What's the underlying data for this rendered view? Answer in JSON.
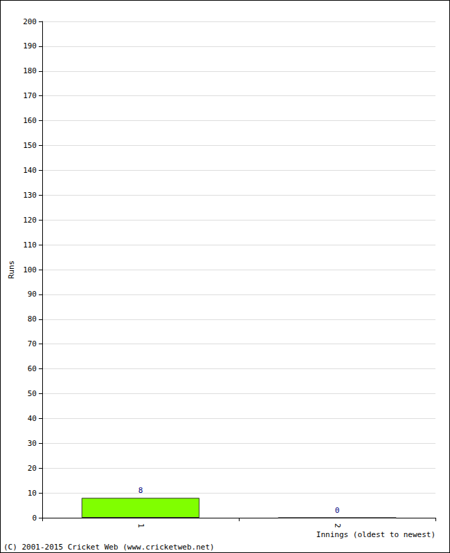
{
  "chart_data": {
    "type": "bar",
    "categories": [
      "1",
      "2"
    ],
    "values": [
      8,
      0
    ],
    "color": "#80ff00",
    "ylim": [
      0,
      200
    ],
    "yticks": [
      0,
      10,
      20,
      30,
      40,
      50,
      60,
      70,
      80,
      90,
      100,
      110,
      120,
      130,
      140,
      150,
      160,
      170,
      180,
      190,
      200
    ],
    "grid": true,
    "data_labels": true,
    "ylabel": "Runs",
    "xlabel": "Innings (oldest to newest)",
    "annotations": [
      "(C) 2001-2015 Cricket Web (www.cricketweb.net)"
    ]
  }
}
